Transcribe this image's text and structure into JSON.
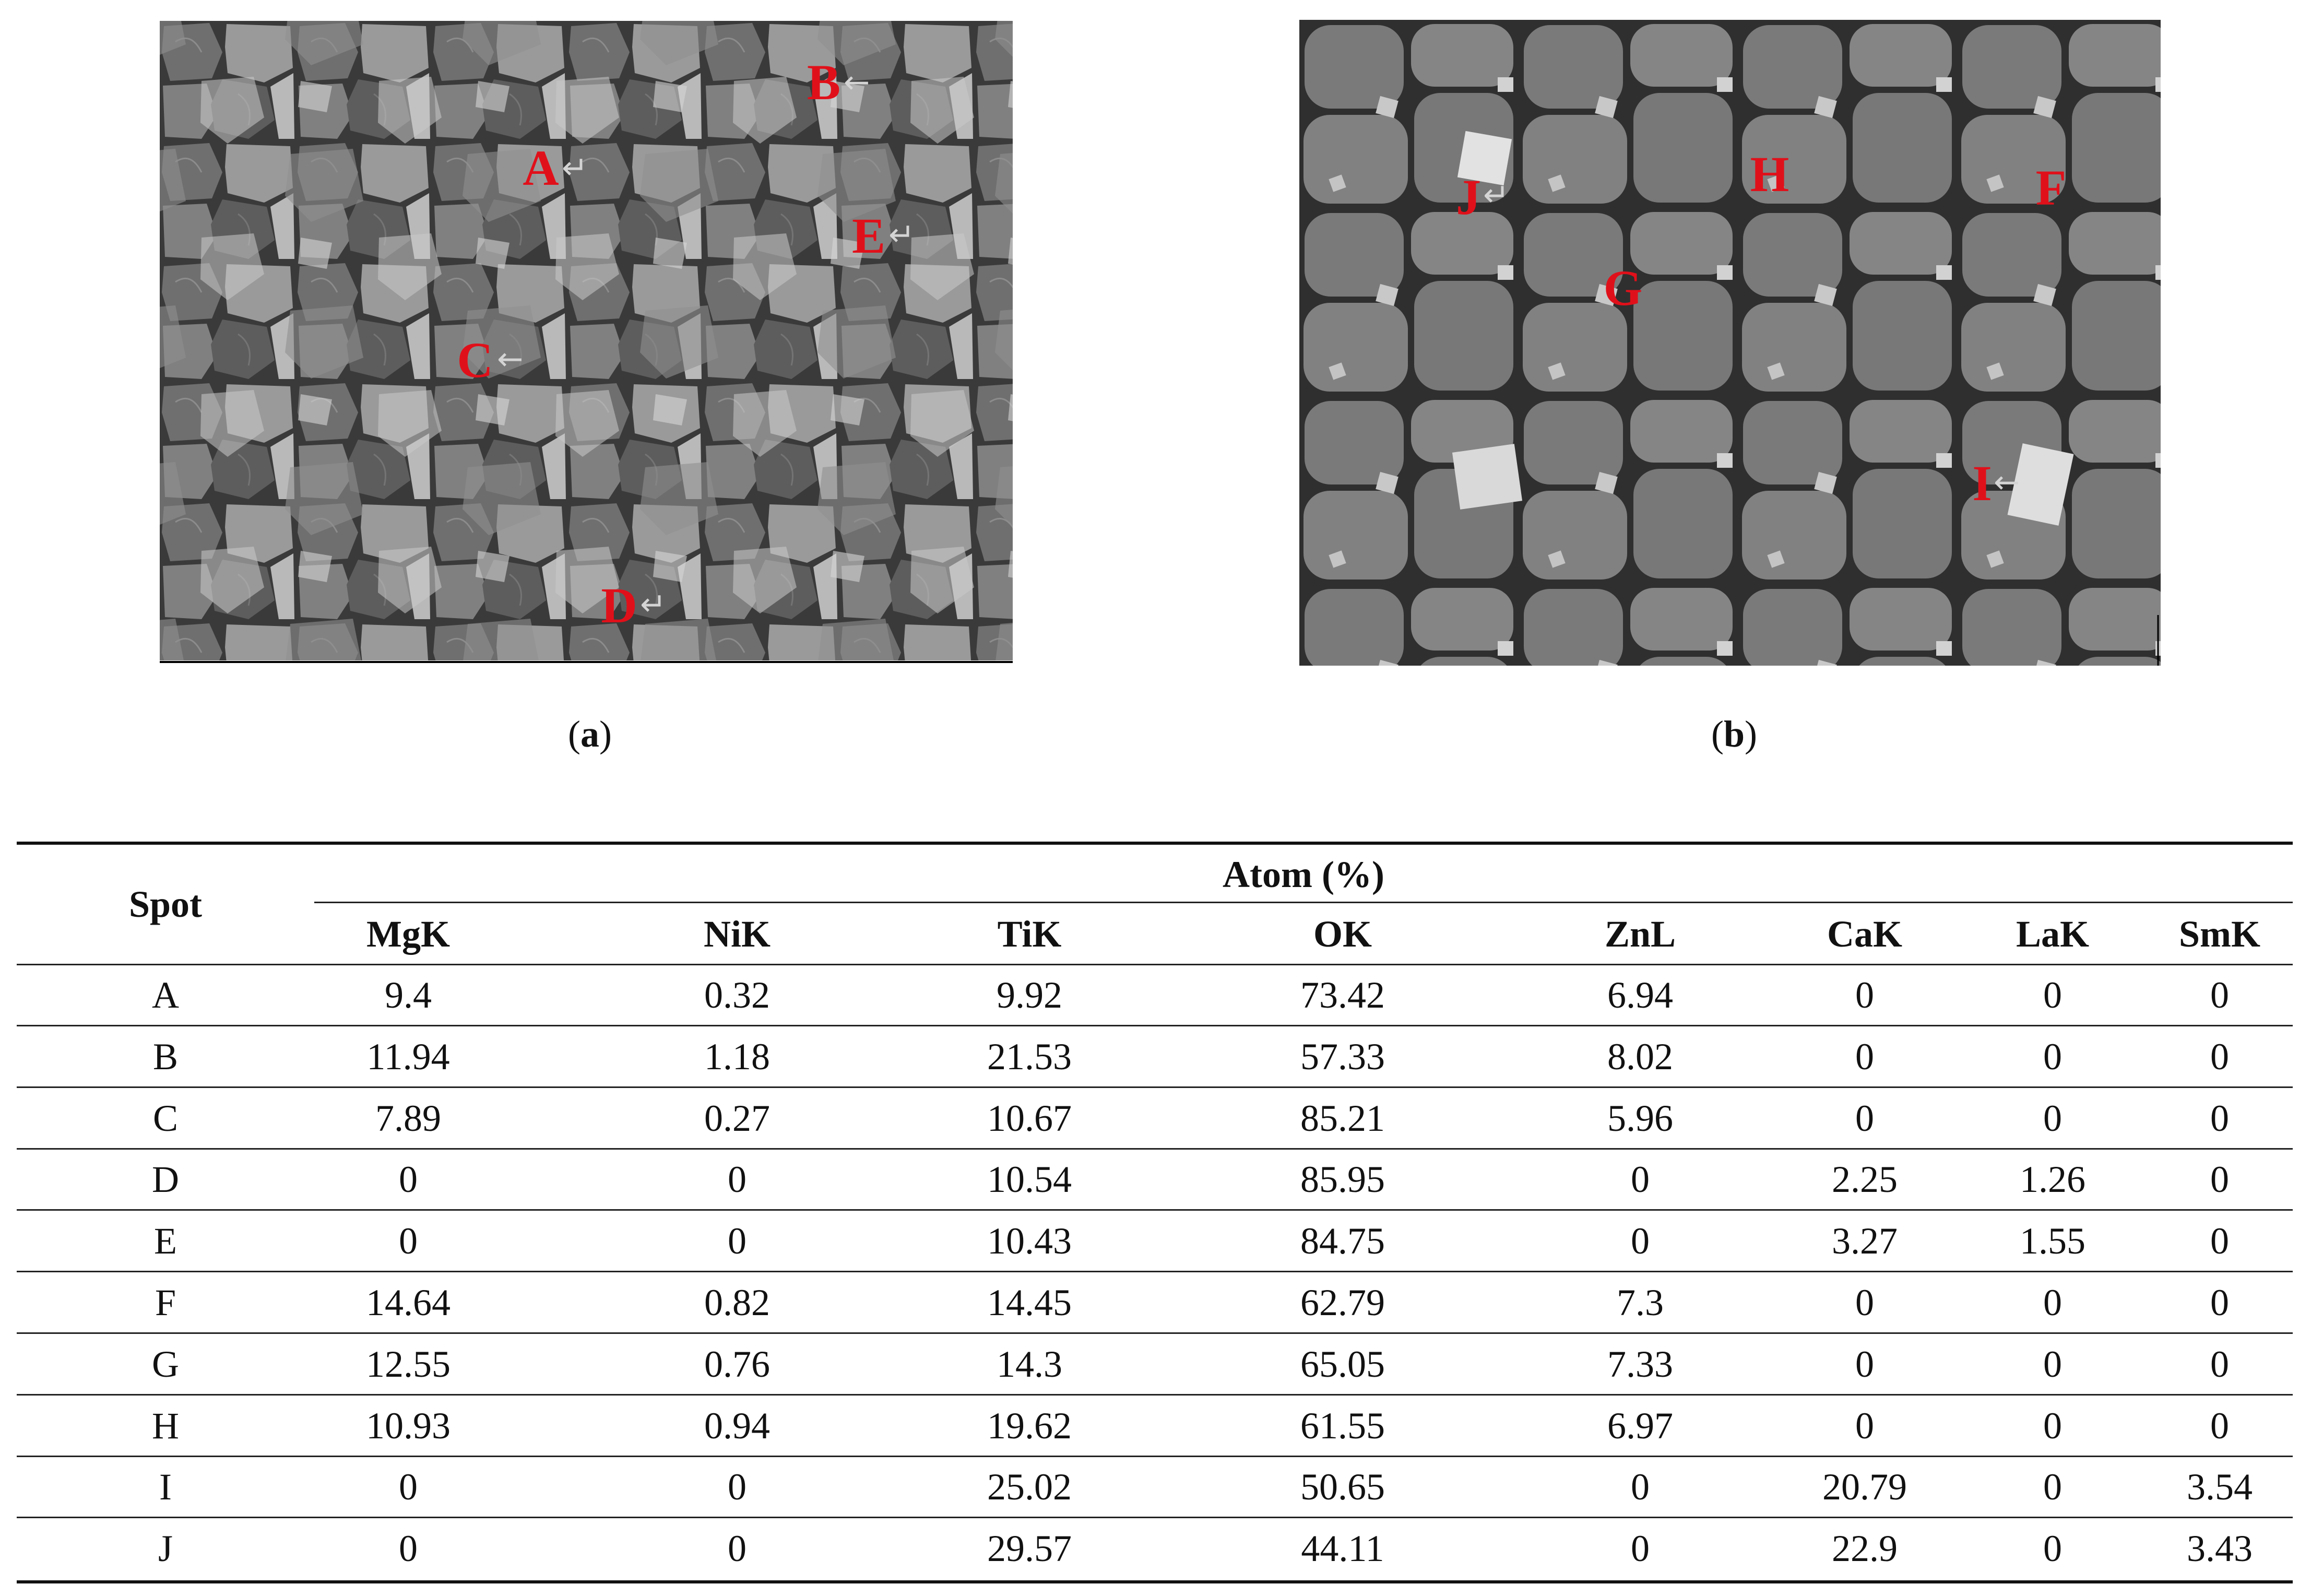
{
  "figure": {
    "panels": [
      {
        "id": "a",
        "caption": "a",
        "spots": [
          {
            "label": "A"
          },
          {
            "label": "B"
          },
          {
            "label": "C"
          },
          {
            "label": "D"
          },
          {
            "label": "E"
          }
        ]
      },
      {
        "id": "b",
        "caption": "b",
        "spots": [
          {
            "label": "J"
          },
          {
            "label": "H"
          },
          {
            "label": "F"
          },
          {
            "label": "G"
          },
          {
            "label": "I"
          }
        ]
      }
    ],
    "colors": {
      "spot_label": "#e0101a",
      "background": "#ffffff"
    }
  },
  "table": {
    "row_header": "Spot",
    "group_header": "Atom (%)",
    "columns": [
      "MgK",
      "NiK",
      "TiK",
      "OK",
      "ZnL",
      "CaK",
      "LaK",
      "SmK"
    ],
    "rows": [
      {
        "spot": "A",
        "values": [
          "9.4",
          "0.32",
          "9.92",
          "73.42",
          "6.94",
          "0",
          "0",
          "0"
        ]
      },
      {
        "spot": "B",
        "values": [
          "11.94",
          "1.18",
          "21.53",
          "57.33",
          "8.02",
          "0",
          "0",
          "0"
        ]
      },
      {
        "spot": "C",
        "values": [
          "7.89",
          "0.27",
          "10.67",
          "85.21",
          "5.96",
          "0",
          "0",
          "0"
        ]
      },
      {
        "spot": "D",
        "values": [
          "0",
          "0",
          "10.54",
          "85.95",
          "0",
          "2.25",
          "1.26",
          "0"
        ]
      },
      {
        "spot": "E",
        "values": [
          "0",
          "0",
          "10.43",
          "84.75",
          "0",
          "3.27",
          "1.55",
          "0"
        ]
      },
      {
        "spot": "F",
        "values": [
          "14.64",
          "0.82",
          "14.45",
          "62.79",
          "7.3",
          "0",
          "0",
          "0"
        ]
      },
      {
        "spot": "G",
        "values": [
          "12.55",
          "0.76",
          "14.3",
          "65.05",
          "7.33",
          "0",
          "0",
          "0"
        ]
      },
      {
        "spot": "H",
        "values": [
          "10.93",
          "0.94",
          "19.62",
          "61.55",
          "6.97",
          "0",
          "0",
          "0"
        ]
      },
      {
        "spot": "I",
        "values": [
          "0",
          "0",
          "25.02",
          "50.65",
          "0",
          "20.79",
          "0",
          "3.54"
        ]
      },
      {
        "spot": "J",
        "values": [
          "0",
          "0",
          "29.57",
          "44.11",
          "0",
          "22.9",
          "0",
          "3.43"
        ]
      }
    ]
  }
}
